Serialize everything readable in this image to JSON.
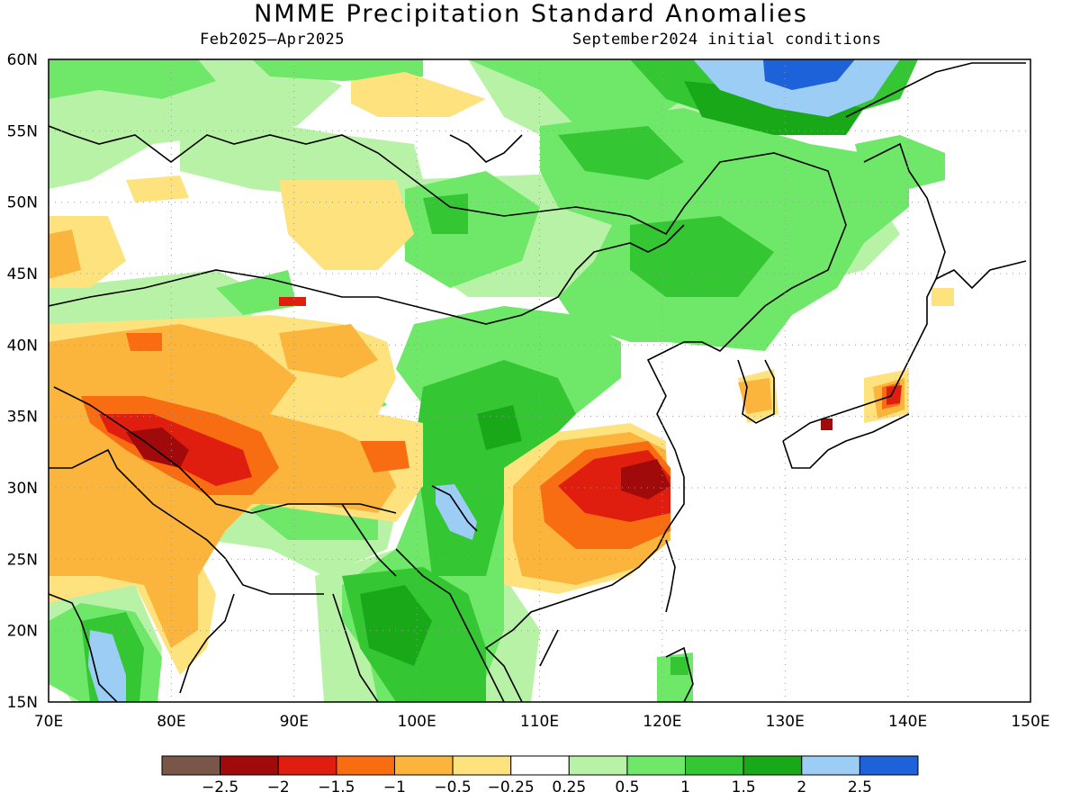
{
  "title": "NMME Precipitation Standard Anomalies",
  "subtitle_left": "Feb2025–Apr2025",
  "subtitle_right": "September2024 initial conditions",
  "axes": {
    "lon_labels": [
      "70E",
      "80E",
      "90E",
      "100E",
      "110E",
      "120E",
      "130E",
      "140E",
      "150E"
    ],
    "lat_labels": [
      "60N",
      "55N",
      "50N",
      "45N",
      "40N",
      "35N",
      "30N",
      "25N",
      "20N",
      "15N"
    ],
    "lon_range": [
      70,
      150
    ],
    "lat_range": [
      15,
      60
    ],
    "grid": "dotted"
  },
  "colorbar": {
    "colors": [
      "#7a5649",
      "#a00a0a",
      "#e01e10",
      "#f86c12",
      "#fbb53c",
      "#fde27e",
      "#ffffff",
      "#b8f2a6",
      "#6fe86a",
      "#35c634",
      "#18a818",
      "#9ccdf4",
      "#1d62d8"
    ],
    "tick_labels": [
      "−2.5",
      "−2",
      "−1.5",
      "−1",
      "−0.5",
      "−0.25",
      "0.25",
      "0.5",
      "1",
      "1.5",
      "2",
      "2.5"
    ],
    "breaks": [
      -2.5,
      -2,
      -1.5,
      -1,
      -0.5,
      -0.25,
      0.25,
      0.5,
      1,
      1.5,
      2,
      2.5
    ]
  }
}
